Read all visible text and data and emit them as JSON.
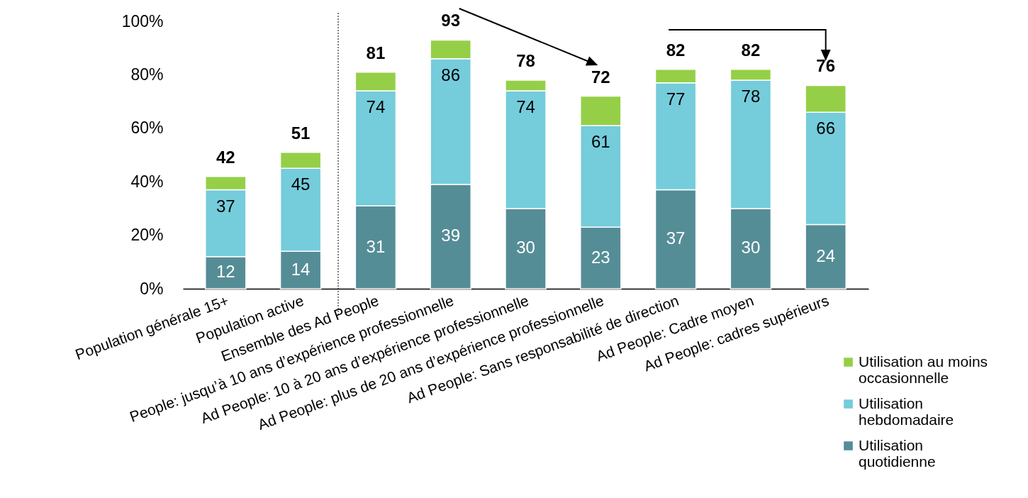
{
  "chart_data": {
    "type": "bar",
    "stacked": true,
    "categories": [
      "Population générale 15+",
      "Population active",
      "Ensemble des Ad People",
      "People: jusqu’à 10 ans d’expérience professionnelle",
      "Ad People: 10 à 20 ans d’expérience professionnelle",
      "Ad People: plus de 20 ans d’expérience professionnelle",
      "Ad People: Sans responsabilité de direction",
      "Ad People: Cadre moyen",
      "Ad People: cadres supérieurs"
    ],
    "series": [
      {
        "name": "Utilisation quotidienne",
        "color": "#558d97",
        "values": [
          12,
          14,
          31,
          39,
          30,
          23,
          37,
          30,
          24
        ],
        "value_labels": [
          "12",
          "14",
          "31",
          "39",
          "30",
          "23",
          "37",
          "30",
          "24"
        ]
      },
      {
        "name": "Utilisation hebdomadaire",
        "color": "#75ccdb",
        "values": [
          25,
          31,
          43,
          47,
          44,
          38,
          40,
          48,
          42
        ]
      },
      {
        "name": "Utilisation au moins occasionnelle",
        "color": "#95cf48",
        "values": [
          5,
          6,
          7,
          7,
          4,
          11,
          5,
          4,
          10
        ]
      }
    ],
    "totals": [
      "42",
      "51",
      "81",
      "93",
      "78",
      "72",
      "82",
      "82",
      "76"
    ],
    "annotations": [
      {
        "text": "37",
        "x": "Population générale 15+",
        "y": 37
      },
      {
        "text": "45",
        "x": "Population active",
        "y": 45
      },
      {
        "text": "74",
        "x": "Ensemble des Ad People",
        "y": 74
      },
      {
        "text": "86",
        "x": "People: jusqu’à 10 ans d’expérience professionnelle",
        "y": 86
      },
      {
        "text": "74",
        "x": "Ad People: 10 à 20 ans d’expérience professionnelle",
        "y": 74
      },
      {
        "text": "61",
        "x": "Ad People: plus de 20 ans d’expérience professionnelle",
        "y": 61
      },
      {
        "text": "77",
        "x": "Ad People: Sans responsabilité de direction",
        "y": 77
      },
      {
        "text": "78",
        "x": "Ad People: Cadre moyen",
        "y": 78
      },
      {
        "text": "66",
        "x": "Ad People: cadres supérieurs",
        "y": 66
      }
    ],
    "ylim": [
      0,
      100
    ],
    "yticks": [
      {
        "value": 0,
        "label": "0%"
      },
      {
        "value": 20,
        "label": "20%"
      },
      {
        "value": 40,
        "label": "40%"
      },
      {
        "value": 60,
        "label": "60%"
      },
      {
        "value": 80,
        "label": "80%"
      },
      {
        "value": 100,
        "label": "100%"
      }
    ],
    "grid": false,
    "legend": "bottom right"
  }
}
